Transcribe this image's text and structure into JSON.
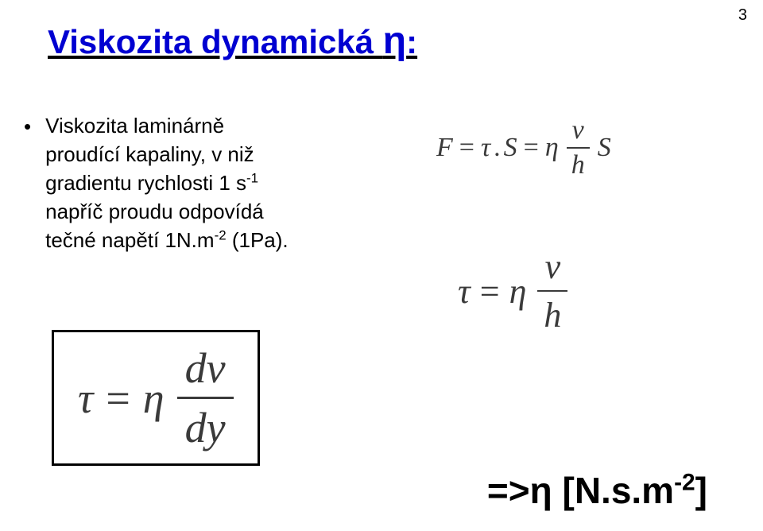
{
  "page_number": "3",
  "title": {
    "main": "Viskozita dynamická ",
    "eta": "η",
    "colon": ":",
    "color": "#0000d1",
    "fontsize": 42,
    "underline": true
  },
  "bullet_text": {
    "bullet": "•",
    "line1": "Viskozita laminárně",
    "line2": "proudící kapaliny, v niž",
    "line3_a": "gradientu rychlosti 1 s",
    "line3_sup": "-1",
    "line4": "napříč proudu odpovídá",
    "line5_a": "tečné napětí 1N.m",
    "line5_sup": "-2",
    "line5_b": " (1Pa).",
    "fontsize": 26,
    "color": "#000000"
  },
  "eq1": {
    "lhs1": "F",
    "op1": "=",
    "mid1": "τ",
    "dot": ".",
    "mid2": "S",
    "op2": "=",
    "rhs_eta": "η",
    "frac_num": "v",
    "frac_den": "h",
    "rhs_tail": "S",
    "fontsize": 34,
    "color": "#3a3a3a"
  },
  "eq2": {
    "lhs": "τ",
    "op": "=",
    "eta": "η",
    "frac_num": "v",
    "frac_den": "h",
    "fontsize": 44,
    "color": "#3a3a3a"
  },
  "eq3": {
    "lhs": "τ",
    "op": "=",
    "eta": "η",
    "frac_num": "dv",
    "frac_den": "dy",
    "boxed": true,
    "fontsize": 54,
    "color": "#3a3a3a",
    "border_color": "#000000"
  },
  "conclusion": {
    "arrow": "=>",
    "eta": "η",
    "space": " ",
    "unit_a": "[N.s.m",
    "unit_sup": "-2",
    "unit_b": "]",
    "fontsize": 46,
    "color": "#000000"
  },
  "colors": {
    "background": "#ffffff",
    "text": "#000000",
    "title": "#0000d1",
    "equation": "#3a3a3a"
  }
}
